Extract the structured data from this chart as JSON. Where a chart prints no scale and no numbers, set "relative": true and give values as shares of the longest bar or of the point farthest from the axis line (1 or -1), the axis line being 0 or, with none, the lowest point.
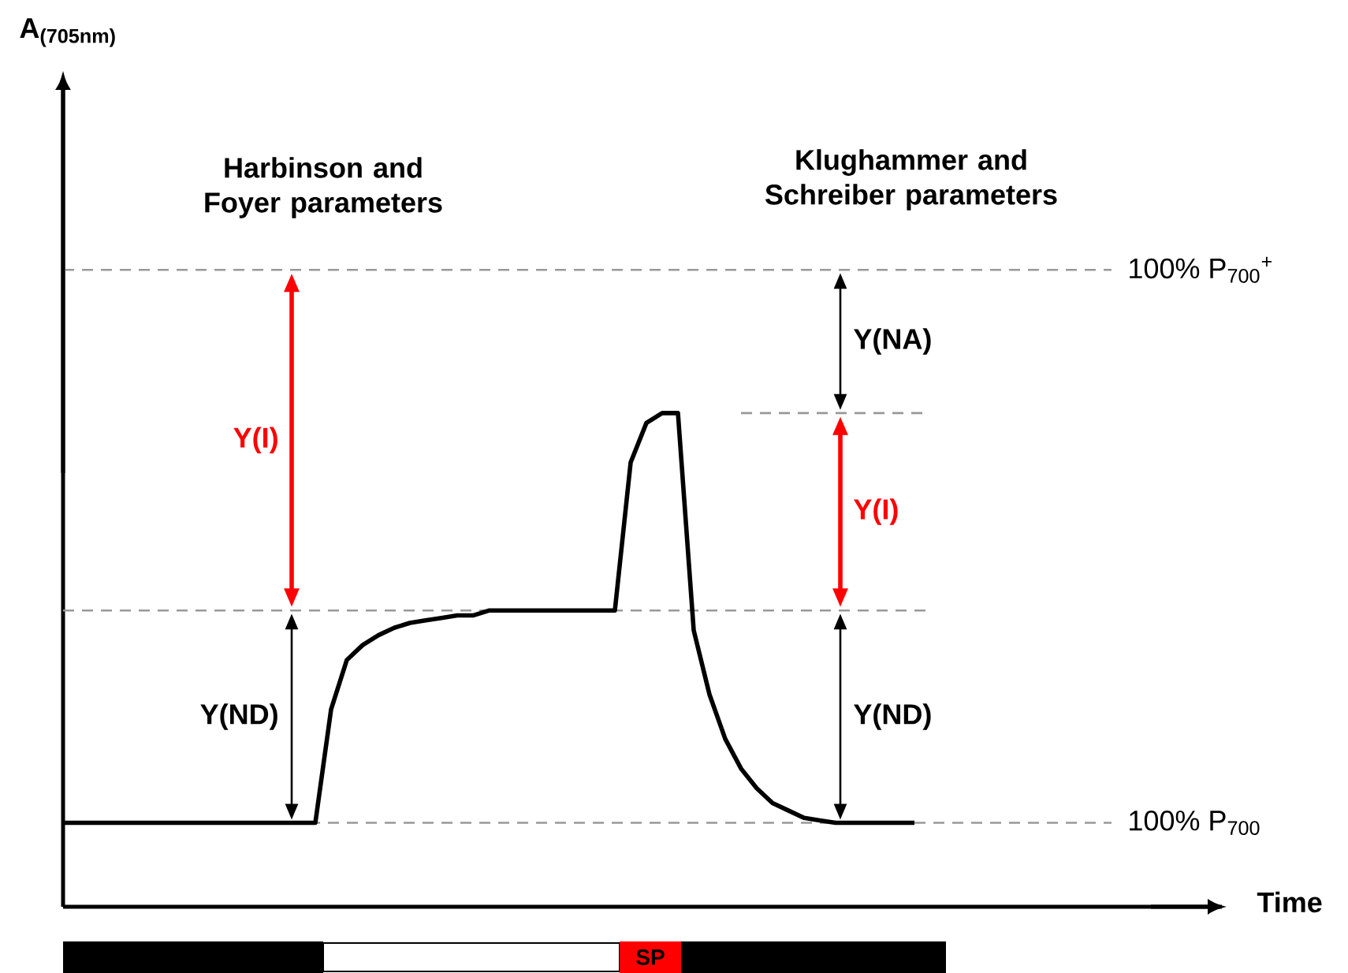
{
  "chart_data": {
    "type": "line",
    "relative": true,
    "xlabel": "Time",
    "color": "#000000",
    "categories": [
      null,
      null,
      null,
      null,
      null,
      null,
      null,
      null,
      null,
      null,
      null,
      null,
      null,
      null,
      null,
      null,
      null,
      null,
      null,
      null,
      null,
      null,
      null,
      null,
      null,
      null,
      null,
      null,
      null,
      null,
      null,
      null,
      null,
      null,
      null,
      null,
      null,
      null,
      null,
      null,
      null,
      null,
      null,
      null,
      null,
      null,
      null,
      null,
      null,
      null,
      null,
      null,
      null,
      null,
      null,
      null,
      null,
      null,
      null,
      null,
      null,
      null,
      null,
      null,
      null,
      null,
      null,
      null,
      null,
      null,
      null,
      null,
      null,
      null
    ],
    "values": [
      0.17,
      0.17,
      0.17,
      0.17,
      0.17,
      0.17,
      0.17,
      0.17,
      0.17,
      0.17,
      0.17,
      0.17,
      0.17,
      0.17,
      0.17,
      0.17,
      0.17,
      0.4,
      0.5,
      0.53,
      0.55,
      0.565,
      0.575,
      0.58,
      0.585,
      0.59,
      0.59,
      0.6,
      0.6,
      0.6,
      0.6,
      0.6,
      0.6,
      0.6,
      0.6,
      0.6,
      0.9,
      0.98,
      1,
      1,
      0.56,
      0.43,
      0.34,
      0.28,
      0.24,
      0.21,
      0.195,
      0.18,
      0.175,
      0.17,
      0.17,
      0.17,
      0.17,
      0.17,
      0.17,
      null,
      null,
      null,
      null,
      null,
      null,
      null,
      null,
      null,
      null,
      null,
      null,
      null,
      null,
      null,
      null,
      null,
      null,
      null
    ],
    "ref_lines": [
      {
        "axis": "y",
        "value": 1.29,
        "label": "100% P$_{700}$$^{+}$",
        "color": "#999999",
        "line_style": "dashed"
      },
      {
        "axis": "y",
        "value": 1.0,
        "color": "#999999",
        "line_style": "dashed"
      },
      {
        "axis": "y",
        "value": 0.6,
        "color": "#999999",
        "line_style": "dashed"
      },
      {
        "axis": "y",
        "value": 0.17,
        "label": "100% P$_{700}$",
        "color": "#999999",
        "line_style": "dashed"
      }
    ],
    "annotations": [
      "Harbinson and Foyer parameters",
      "Klughammer and Schreiber parameters",
      "Y(I)",
      "Y(ND)",
      "Y(NA)",
      "Y(I)",
      "Y(ND)",
      "SP",
      "A$_{(705nm)}$"
    ]
  }
}
